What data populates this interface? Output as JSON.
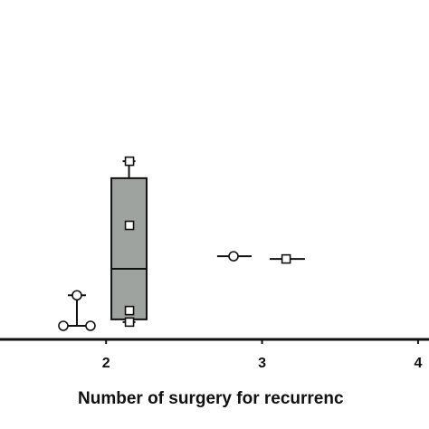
{
  "chart_data": {
    "type": "box",
    "xlabel": "Number of surgery for recurrenc",
    "xlim": [
      1.32,
      4.07
    ],
    "xticks": [
      2,
      3,
      4
    ],
    "ylim": [
      0,
      10
    ],
    "box": {
      "x0": 2.034,
      "x1": 2.26,
      "q1": 0.59,
      "median": 2.08,
      "q3": 4.75,
      "whisker_low": 0.51,
      "whisker_high": 5.25,
      "color": "#9ea3a0"
    },
    "segments": [
      [
        1.726,
        0.4,
        1.9,
        0.4
      ],
      [
        1.813,
        0.4,
        1.813,
        1.3
      ],
      [
        1.755,
        1.3,
        1.871,
        1.3
      ],
      [
        2.712,
        2.45,
        2.933,
        2.45
      ],
      [
        3.049,
        2.37,
        3.275,
        2.37
      ]
    ],
    "circles": {
      "x": [
        1.726,
        1.9,
        1.813,
        2.817
      ],
      "y": [
        0.4,
        0.4,
        1.3,
        2.45
      ]
    },
    "squares": {
      "x": [
        2.15,
        2.15,
        2.15,
        2.15,
        3.154
      ],
      "y": [
        5.25,
        3.36,
        0.85,
        0.51,
        2.37
      ]
    }
  }
}
